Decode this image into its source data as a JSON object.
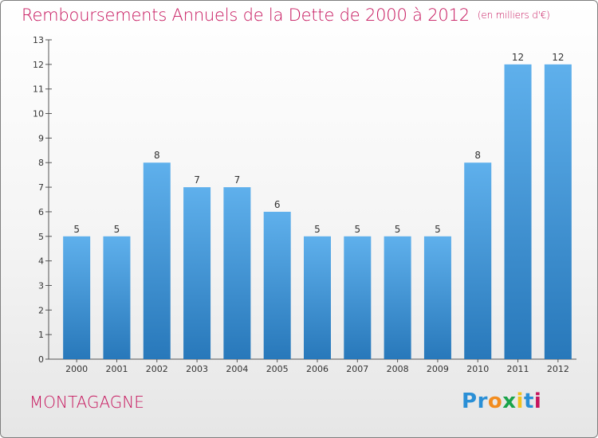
{
  "title": "Remboursements Annuels de la Dette de 2000 à 2012",
  "subtitle": "(en milliers d'€)",
  "place": "MONTAGAGNE",
  "logo": {
    "letters": [
      "P",
      "r",
      "o",
      "x",
      "i",
      "t",
      "i"
    ],
    "colors": [
      "#2a8fd6",
      "#2a8fd6",
      "#f28c1e",
      "#1aa34a",
      "#f2c21e",
      "#2a8fd6",
      "#c6145c"
    ]
  },
  "colors": {
    "bar_top": "#5fb0ec",
    "bar_bottom": "#2878ba",
    "accent": "#c6145c"
  },
  "chart_data": {
    "type": "bar",
    "categories": [
      "2000",
      "2001",
      "2002",
      "2003",
      "2004",
      "2005",
      "2006",
      "2007",
      "2008",
      "2009",
      "2010",
      "2011",
      "2012"
    ],
    "values": [
      5,
      5,
      8,
      7,
      7,
      6,
      5,
      5,
      5,
      5,
      8,
      12,
      12
    ],
    "data_labels": [
      "5",
      "5",
      "8",
      "7",
      "7",
      "6",
      "5",
      "5",
      "5",
      "5",
      "8",
      "12",
      "12"
    ],
    "yticks": [
      "0",
      "1",
      "2",
      "3",
      "4",
      "5",
      "6",
      "7",
      "8",
      "9",
      "10",
      "11",
      "12",
      "13"
    ],
    "ylim": [
      0,
      13
    ],
    "grid": false,
    "xlabel": "",
    "ylabel": ""
  }
}
